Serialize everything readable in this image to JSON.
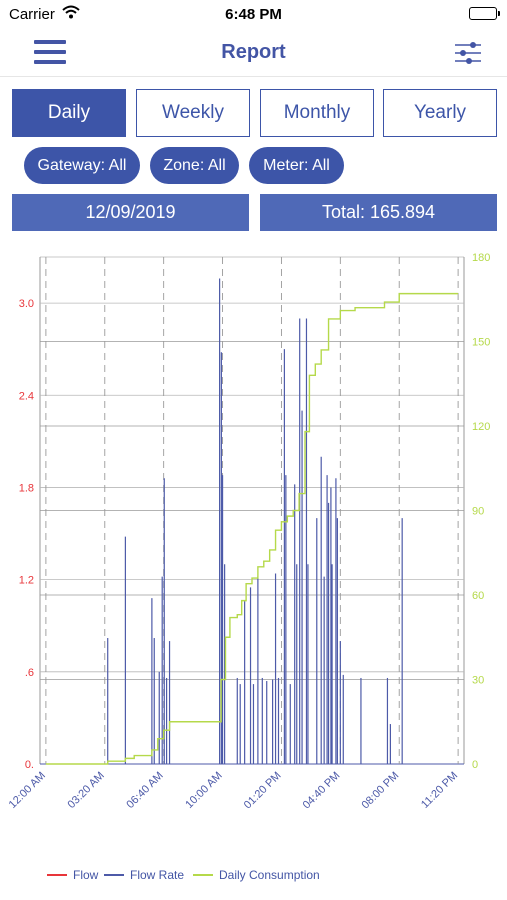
{
  "status_bar": {
    "carrier": "Carrier",
    "time": "6:48 PM"
  },
  "nav": {
    "title": "Report",
    "menu_icon": "hamburger-menu-icon",
    "filter_icon": "sliders-icon"
  },
  "period_tabs": [
    {
      "label": "Daily",
      "active": true
    },
    {
      "label": "Weekly",
      "active": false
    },
    {
      "label": "Monthly",
      "active": false
    },
    {
      "label": "Yearly",
      "active": false
    }
  ],
  "filters": {
    "gateway": "Gateway: All",
    "zone": "Zone: All",
    "meter": "Meter: All"
  },
  "summary": {
    "date": "12/09/2019",
    "total": "Total: 165.894"
  },
  "colors": {
    "primary": "#3d55a8",
    "secondary": "#4f69b7",
    "flow": "#e8353a",
    "flow_rate": "#4d5aa8",
    "daily_consumption": "#b5d94a"
  },
  "chart_data": {
    "type": "line",
    "x_ticks": [
      "12:00 AM",
      "03:20 AM",
      "06:40 AM",
      "10:00 AM",
      "01:20 PM",
      "04:40 PM",
      "08:00 PM",
      "11:20 PM"
    ],
    "x_tick_minutes": [
      0,
      200,
      400,
      600,
      800,
      1000,
      1200,
      1400
    ],
    "xlim_minutes": [
      -20,
      1420
    ],
    "y_left": {
      "ticks": [
        "0.",
        ".6",
        "1.2",
        "1.8",
        "2.4",
        "3.0"
      ],
      "range": [
        0,
        3.3
      ],
      "color": "#e8353a"
    },
    "y_right": {
      "ticks": [
        "0",
        "30",
        "60",
        "90",
        "120",
        "150",
        "180"
      ],
      "range": [
        0,
        180
      ],
      "color": "#b5d94a"
    },
    "legend": [
      "Flow",
      "Flow Rate",
      "Daily Consumption"
    ],
    "series": [
      {
        "name": "Flow",
        "axis": "left",
        "points": []
      },
      {
        "name": "Flow Rate",
        "axis": "left",
        "spikes": [
          [
            210,
            0.82
          ],
          [
            270,
            1.48
          ],
          [
            360,
            1.08
          ],
          [
            368,
            0.82
          ],
          [
            385,
            0.6
          ],
          [
            395,
            1.22
          ],
          [
            402,
            1.86
          ],
          [
            410,
            0.56
          ],
          [
            420,
            0.8
          ],
          [
            590,
            3.16
          ],
          [
            596,
            2.68
          ],
          [
            600,
            1.88
          ],
          [
            607,
            1.3
          ],
          [
            650,
            0.56
          ],
          [
            660,
            0.52
          ],
          [
            675,
            1.06
          ],
          [
            695,
            1.15
          ],
          [
            705,
            0.52
          ],
          [
            720,
            1.22
          ],
          [
            735,
            0.56
          ],
          [
            750,
            0.54
          ],
          [
            770,
            0.55
          ],
          [
            780,
            1.24
          ],
          [
            790,
            0.56
          ],
          [
            810,
            2.7
          ],
          [
            815,
            1.88
          ],
          [
            830,
            0.52
          ],
          [
            845,
            1.82
          ],
          [
            852,
            1.3
          ],
          [
            862,
            2.9
          ],
          [
            870,
            2.3
          ],
          [
            885,
            2.9
          ],
          [
            890,
            1.3
          ],
          [
            920,
            1.6
          ],
          [
            935,
            2.0
          ],
          [
            945,
            1.22
          ],
          [
            955,
            1.88
          ],
          [
            960,
            1.7
          ],
          [
            968,
            1.8
          ],
          [
            972,
            1.3
          ],
          [
            985,
            1.86
          ],
          [
            990,
            1.6
          ],
          [
            1000,
            0.8
          ],
          [
            1010,
            0.58
          ],
          [
            1070,
            0.56
          ],
          [
            1160,
            0.56
          ],
          [
            1170,
            0.26
          ],
          [
            1210,
            1.6
          ]
        ]
      },
      {
        "name": "Daily Consumption",
        "axis": "right",
        "points": [
          [
            0,
            0
          ],
          [
            200,
            0
          ],
          [
            210,
            1
          ],
          [
            270,
            2
          ],
          [
            300,
            3
          ],
          [
            360,
            5
          ],
          [
            380,
            9
          ],
          [
            400,
            12
          ],
          [
            420,
            15
          ],
          [
            580,
            15
          ],
          [
            595,
            30
          ],
          [
            610,
            45
          ],
          [
            625,
            52
          ],
          [
            650,
            53
          ],
          [
            665,
            58
          ],
          [
            680,
            64
          ],
          [
            700,
            66
          ],
          [
            720,
            70
          ],
          [
            740,
            72
          ],
          [
            760,
            76
          ],
          [
            780,
            83
          ],
          [
            800,
            86
          ],
          [
            820,
            88
          ],
          [
            840,
            90
          ],
          [
            860,
            96
          ],
          [
            880,
            118
          ],
          [
            895,
            138
          ],
          [
            915,
            142
          ],
          [
            935,
            147
          ],
          [
            960,
            158
          ],
          [
            1000,
            161
          ],
          [
            1050,
            162
          ],
          [
            1100,
            162
          ],
          [
            1150,
            164
          ],
          [
            1200,
            167
          ],
          [
            1400,
            167
          ]
        ]
      }
    ]
  }
}
